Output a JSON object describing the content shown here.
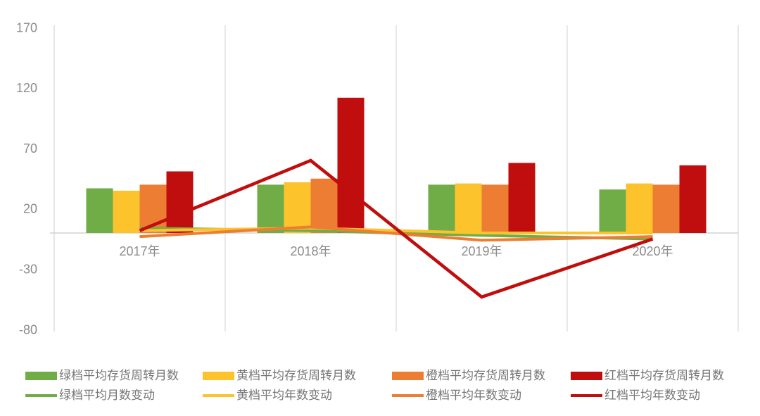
{
  "chart_data": {
    "type": "combo",
    "title": "",
    "xlabel": "",
    "ylabel": "",
    "categories": [
      "2017年",
      "2018年",
      "2019年",
      "2020年"
    ],
    "series": [
      {
        "name": "绿档平均存货周转月数",
        "type": "bar",
        "color": "#71AD47",
        "values": [
          37,
          40,
          40,
          36
        ]
      },
      {
        "name": "黄档平均存货周转月数",
        "type": "bar",
        "color": "#FCC32D",
        "values": [
          35,
          42,
          41,
          41
        ]
      },
      {
        "name": "橙档平均存货周转月数",
        "type": "bar",
        "color": "#EC7D33",
        "values": [
          40,
          45,
          40,
          40
        ]
      },
      {
        "name": "红档平均存货周转月数",
        "type": "bar",
        "color": "#C00D0D",
        "values": [
          51,
          112,
          58,
          56
        ]
      },
      {
        "name": "绿档平均月数变动",
        "type": "line",
        "color": "#71AD47",
        "values": [
          4,
          2,
          -2,
          -5
        ]
      },
      {
        "name": "黄档平均年数变动",
        "type": "line",
        "color": "#FCC32D",
        "values": [
          2,
          4,
          0,
          0
        ]
      },
      {
        "name": "橙档平均年数变动",
        "type": "line",
        "color": "#EC7D33",
        "values": [
          -3,
          5,
          -6,
          -3
        ]
      },
      {
        "name": "红档平均年数变动",
        "type": "line",
        "color": "#C00D0D",
        "values": [
          2,
          60,
          -53,
          -5
        ]
      }
    ],
    "ylim": [
      -80,
      170
    ],
    "yticks": [
      170,
      120,
      70,
      20,
      -30,
      -80
    ],
    "grid": "vertical-category-boundaries-only",
    "legend_position": "bottom-two-rows",
    "axis_line_color": "#DADADA",
    "tick_label_color": "#8C8C8C"
  }
}
